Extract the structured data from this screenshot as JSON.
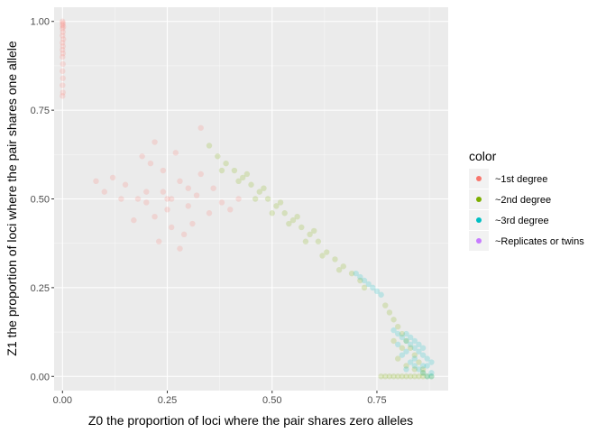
{
  "chart_data": {
    "type": "scatter",
    "xlabel": "Z0 the proportion of loci where the pair shares zero alleles",
    "ylabel": "Z1 the proportion of loci where the pair shares one allele",
    "xlim": [
      -0.02,
      0.92
    ],
    "ylim": [
      -0.04,
      1.04
    ],
    "x_ticks": [
      0.0,
      0.25,
      0.5,
      0.75
    ],
    "x_tick_labels": [
      "0.00",
      "0.25",
      "0.50",
      "0.75"
    ],
    "y_ticks": [
      0.0,
      0.25,
      0.5,
      0.75,
      1.0
    ],
    "y_tick_labels": [
      "0.00",
      "0.25",
      "0.50",
      "0.75",
      "1.00"
    ],
    "grid": true,
    "point_alpha": 0.1,
    "legend": {
      "title": "color",
      "placement": "right",
      "entries": [
        {
          "label": "~1st degree",
          "color": "#F8766D"
        },
        {
          "label": "~2nd degree",
          "color": "#7CAE00"
        },
        {
          "label": "~3rd degree",
          "color": "#00BFC4"
        },
        {
          "label": "~Replicates or twins",
          "color": "#C77CFF"
        }
      ]
    },
    "series": [
      {
        "name": "~1st degree",
        "color": "#F8766D",
        "points": [
          [
            0.0,
            1.0
          ],
          [
            0.001,
            0.995
          ],
          [
            0.0,
            0.99
          ],
          [
            0.002,
            0.985
          ],
          [
            0.0,
            0.98
          ],
          [
            0.001,
            0.97
          ],
          [
            0.0,
            0.96
          ],
          [
            0.002,
            0.95
          ],
          [
            0.0,
            0.94
          ],
          [
            0.001,
            0.93
          ],
          [
            0.0,
            0.92
          ],
          [
            0.001,
            0.91
          ],
          [
            0.0,
            0.9
          ],
          [
            0.001,
            0.88
          ],
          [
            0.0,
            0.86
          ],
          [
            0.001,
            0.84
          ],
          [
            0.0,
            0.82
          ],
          [
            0.001,
            0.8
          ],
          [
            0.0,
            0.79
          ],
          [
            0.25,
            0.5
          ],
          [
            0.2,
            0.52
          ],
          [
            0.3,
            0.48
          ],
          [
            0.22,
            0.45
          ],
          [
            0.28,
            0.55
          ],
          [
            0.18,
            0.5
          ],
          [
            0.32,
            0.51
          ],
          [
            0.24,
            0.58
          ],
          [
            0.26,
            0.42
          ],
          [
            0.15,
            0.54
          ],
          [
            0.35,
            0.46
          ],
          [
            0.21,
            0.6
          ],
          [
            0.29,
            0.4
          ],
          [
            0.12,
            0.56
          ],
          [
            0.38,
            0.49
          ],
          [
            0.23,
            0.38
          ],
          [
            0.27,
            0.63
          ],
          [
            0.17,
            0.44
          ],
          [
            0.33,
            0.57
          ],
          [
            0.19,
            0.62
          ],
          [
            0.31,
            0.43
          ],
          [
            0.25,
            0.47
          ],
          [
            0.2,
            0.49
          ],
          [
            0.3,
            0.53
          ],
          [
            0.26,
            0.5
          ],
          [
            0.24,
            0.52
          ],
          [
            0.1,
            0.52
          ],
          [
            0.4,
            0.47
          ],
          [
            0.14,
            0.5
          ],
          [
            0.36,
            0.53
          ],
          [
            0.22,
            0.66
          ],
          [
            0.28,
            0.36
          ],
          [
            0.33,
            0.7
          ],
          [
            0.08,
            0.55
          ],
          [
            0.42,
            0.5
          ]
        ]
      },
      {
        "name": "~2nd degree",
        "color": "#7CAE00",
        "points": [
          [
            0.35,
            0.65
          ],
          [
            0.37,
            0.62
          ],
          [
            0.39,
            0.6
          ],
          [
            0.41,
            0.58
          ],
          [
            0.43,
            0.56
          ],
          [
            0.45,
            0.54
          ],
          [
            0.47,
            0.52
          ],
          [
            0.49,
            0.5
          ],
          [
            0.51,
            0.48
          ],
          [
            0.53,
            0.46
          ],
          [
            0.55,
            0.44
          ],
          [
            0.57,
            0.42
          ],
          [
            0.59,
            0.4
          ],
          [
            0.61,
            0.38
          ],
          [
            0.63,
            0.35
          ],
          [
            0.65,
            0.33
          ],
          [
            0.67,
            0.31
          ],
          [
            0.69,
            0.29
          ],
          [
            0.71,
            0.27
          ],
          [
            0.72,
            0.25
          ],
          [
            0.38,
            0.58
          ],
          [
            0.42,
            0.55
          ],
          [
            0.46,
            0.5
          ],
          [
            0.5,
            0.46
          ],
          [
            0.54,
            0.43
          ],
          [
            0.58,
            0.38
          ],
          [
            0.62,
            0.34
          ],
          [
            0.66,
            0.3
          ],
          [
            0.44,
            0.57
          ],
          [
            0.48,
            0.53
          ],
          [
            0.52,
            0.49
          ],
          [
            0.56,
            0.45
          ],
          [
            0.6,
            0.41
          ],
          [
            0.77,
            0.2
          ],
          [
            0.78,
            0.18
          ],
          [
            0.79,
            0.16
          ],
          [
            0.8,
            0.14
          ],
          [
            0.81,
            0.12
          ],
          [
            0.82,
            0.1
          ],
          [
            0.83,
            0.08
          ],
          [
            0.84,
            0.06
          ],
          [
            0.85,
            0.04
          ],
          [
            0.86,
            0.02
          ],
          [
            0.87,
            0.0
          ],
          [
            0.76,
            0.0
          ],
          [
            0.77,
            0.0
          ],
          [
            0.78,
            0.0
          ],
          [
            0.79,
            0.0
          ],
          [
            0.8,
            0.0
          ],
          [
            0.81,
            0.0
          ],
          [
            0.82,
            0.0
          ],
          [
            0.83,
            0.0
          ],
          [
            0.84,
            0.0
          ],
          [
            0.85,
            0.0
          ],
          [
            0.86,
            0.0
          ],
          [
            0.88,
            0.0
          ],
          [
            0.8,
            0.05
          ],
          [
            0.82,
            0.03
          ],
          [
            0.84,
            0.02
          ],
          [
            0.86,
            0.01
          ],
          [
            0.81,
            0.08
          ],
          [
            0.79,
            0.1
          ]
        ]
      },
      {
        "name": "~3rd degree",
        "color": "#00BFC4",
        "points": [
          [
            0.7,
            0.29
          ],
          [
            0.71,
            0.28
          ],
          [
            0.72,
            0.27
          ],
          [
            0.73,
            0.26
          ],
          [
            0.74,
            0.25
          ],
          [
            0.75,
            0.24
          ],
          [
            0.76,
            0.23
          ],
          [
            0.79,
            0.13
          ],
          [
            0.8,
            0.12
          ],
          [
            0.81,
            0.11
          ],
          [
            0.82,
            0.1
          ],
          [
            0.83,
            0.09
          ],
          [
            0.84,
            0.08
          ],
          [
            0.85,
            0.07
          ],
          [
            0.86,
            0.06
          ],
          [
            0.87,
            0.05
          ],
          [
            0.88,
            0.04
          ],
          [
            0.8,
            0.09
          ],
          [
            0.82,
            0.07
          ],
          [
            0.84,
            0.05
          ],
          [
            0.86,
            0.03
          ],
          [
            0.88,
            0.01
          ],
          [
            0.81,
            0.06
          ],
          [
            0.83,
            0.04
          ],
          [
            0.85,
            0.02
          ],
          [
            0.87,
            0.0
          ],
          [
            0.88,
            0.0
          ],
          [
            0.82,
            0.12
          ],
          [
            0.84,
            0.1
          ],
          [
            0.86,
            0.08
          ],
          [
            0.83,
            0.11
          ],
          [
            0.85,
            0.09
          ],
          [
            0.87,
            0.03
          ],
          [
            0.84,
            0.03
          ],
          [
            0.86,
            0.01
          ],
          [
            0.82,
            0.02
          ]
        ]
      },
      {
        "name": "~Replicates or twins",
        "color": "#C77CFF",
        "points": []
      }
    ]
  }
}
